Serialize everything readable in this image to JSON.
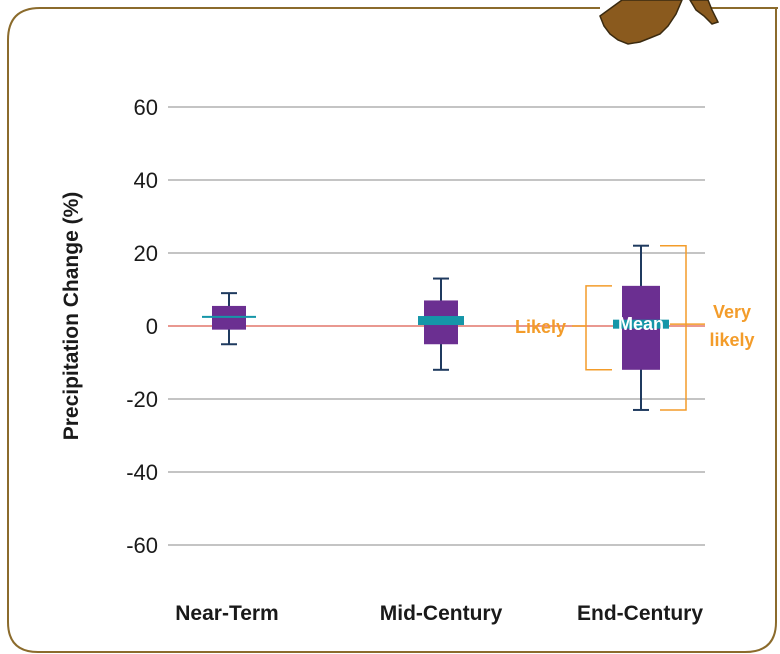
{
  "chart_data": {
    "type": "box",
    "ylabel": "Precipitation Change (%)",
    "ylim": [
      -65,
      65
    ],
    "yticks": [
      60,
      40,
      20,
      0,
      -20,
      -40,
      -60
    ],
    "categories": [
      "Near-Term",
      "Mid-Century",
      "End-Century"
    ],
    "boxes": [
      {
        "category": "Near-Term",
        "whisker_low": -5,
        "q_low": -1,
        "mean": 2.5,
        "q_high": 5.5,
        "whisker_high": 9
      },
      {
        "category": "Mid-Century",
        "whisker_low": -12,
        "q_low": -5,
        "mean": 1.5,
        "q_high": 7,
        "whisker_high": 13
      },
      {
        "category": "End-Century",
        "whisker_low": -23,
        "q_low": -12,
        "mean": 0.5,
        "q_high": 11,
        "whisker_high": 22
      }
    ],
    "annotations": {
      "likely": "Likely",
      "mean": "Mean",
      "very_likely_1": "Very",
      "very_likely_2": "likely"
    },
    "colors": {
      "box": "#6b2f91",
      "whisker": "#1f3a5f",
      "mean": "#1596a8",
      "zero_line": "#e2766b",
      "grid": "#8a8a8a",
      "annotation": "#f39c2a",
      "frame": "#8b6b2c"
    }
  }
}
